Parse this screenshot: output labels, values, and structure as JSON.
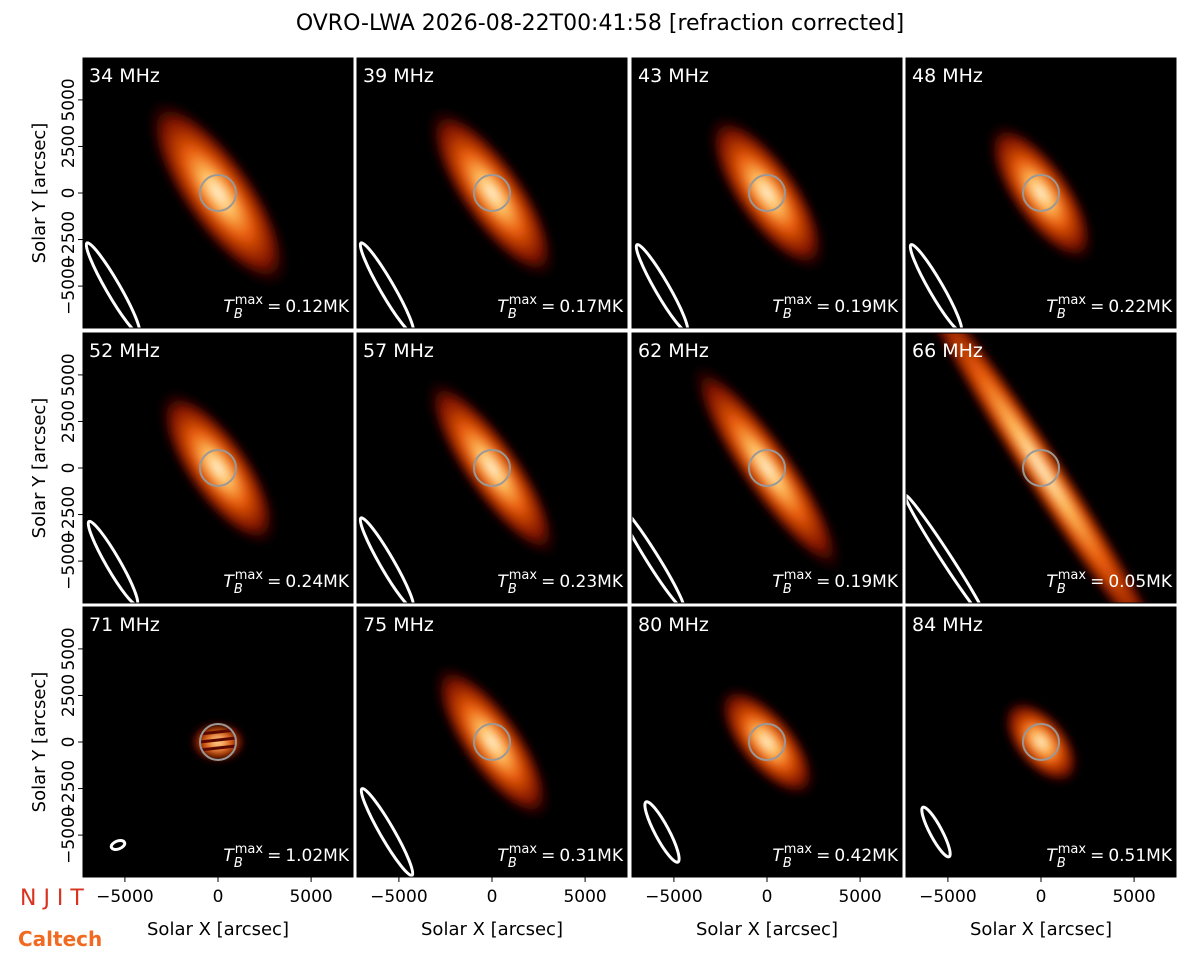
{
  "chart_data": {
    "type": "image-grid",
    "title": "OVRO-LWA 2026-08-22T00:41:58 [refraction corrected]",
    "xlabel": "Solar X [arcsec]",
    "ylabel": "Solar Y [arcsec]",
    "xlim": [
      -7250,
      7250
    ],
    "ylim": [
      -7250,
      7250
    ],
    "xticks": [
      {
        "value": -5000,
        "label": "−5000"
      },
      0,
      5000
    ],
    "yticks": [
      {
        "value": -5000,
        "label": "−5000"
      },
      {
        "value": -2500,
        "label": "−2500"
      },
      0,
      2500,
      5000
    ],
    "tb": {
      "symbol": "T",
      "sub": "B",
      "sup": "max",
      "eq": "=",
      "unit": "MK"
    },
    "panels": [
      {
        "freq": "34 MHz",
        "tb_max": 0.12
      },
      {
        "freq": "39 MHz",
        "tb_max": 0.17
      },
      {
        "freq": "43 MHz",
        "tb_max": 0.19
      },
      {
        "freq": "48 MHz",
        "tb_max": 0.22
      },
      {
        "freq": "52 MHz",
        "tb_max": 0.24
      },
      {
        "freq": "57 MHz",
        "tb_max": 0.23
      },
      {
        "freq": "62 MHz",
        "tb_max": 0.19
      },
      {
        "freq": "66 MHz",
        "tb_max": 0.05
      },
      {
        "freq": "71 MHz",
        "tb_max": 1.02
      },
      {
        "freq": "75 MHz",
        "tb_max": 0.31
      },
      {
        "freq": "80 MHz",
        "tb_max": 0.42
      },
      {
        "freq": "84 MHz",
        "tb_max": 0.51
      }
    ],
    "logos": {
      "njit": "N J I T",
      "caltech": "Caltech"
    }
  }
}
